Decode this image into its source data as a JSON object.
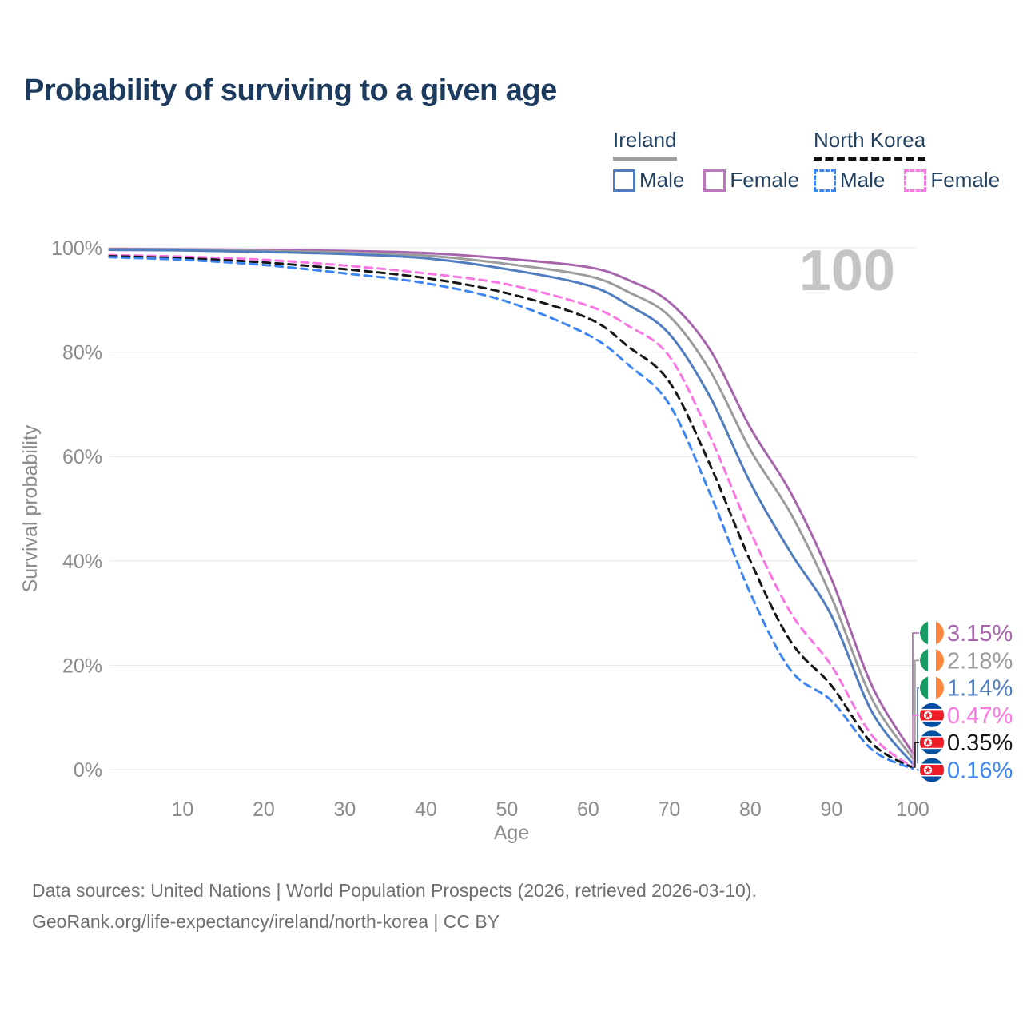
{
  "title": "Probability of surviving to a given age",
  "watermark": "100",
  "legend": {
    "groups": [
      {
        "label": "Ireland",
        "line_style": "solid",
        "underline_color": "#9e9e9e",
        "items": [
          {
            "label": "Male",
            "color": "#4f7dbf"
          },
          {
            "label": "Female",
            "color": "#bd77bd"
          }
        ]
      },
      {
        "label": "North Korea",
        "line_style": "dashed",
        "underline_color": "#111111",
        "items": [
          {
            "label": "Male",
            "color": "#3c85f2"
          },
          {
            "label": "Female",
            "color": "#fb76e4"
          }
        ]
      }
    ]
  },
  "chart_data": {
    "type": "line",
    "title": "Probability of surviving to a given age",
    "xlabel": "Age",
    "ylabel": "Survival probability",
    "xlim": [
      1,
      100.5
    ],
    "ylim": [
      0,
      100
    ],
    "grid": true,
    "x_ticks": [
      10,
      20,
      30,
      40,
      50,
      60,
      70,
      80,
      90,
      100
    ],
    "y_ticks": [
      0,
      20,
      40,
      60,
      80,
      100
    ],
    "y_tick_suffix": "%",
    "x": [
      1,
      10,
      20,
      30,
      40,
      50,
      60,
      65,
      70,
      75,
      80,
      85,
      90,
      95,
      100
    ],
    "series": [
      {
        "name": "Ireland Female",
        "country": "Ireland",
        "sex": "Female",
        "color": "#a765ab",
        "dashed": false,
        "flag": "ireland",
        "end_label": "3.15%",
        "values": [
          99.8,
          99.7,
          99.6,
          99.4,
          99.0,
          97.9,
          96.3,
          93.8,
          89.6,
          80.5,
          65.5,
          53.0,
          36.5,
          16.0,
          3.15
        ]
      },
      {
        "name": "Ireland Both sexes",
        "country": "Ireland",
        "sex": "Both",
        "color": "#9c9c9c",
        "dashed": false,
        "flag": "ireland",
        "end_label": "2.18%",
        "values": [
          99.7,
          99.6,
          99.4,
          99.1,
          98.5,
          96.9,
          94.6,
          91.5,
          86.9,
          76.5,
          61.3,
          49.0,
          33.0,
          13.5,
          2.18
        ]
      },
      {
        "name": "Ireland Male",
        "country": "Ireland",
        "sex": "Male",
        "color": "#4f7dbf",
        "dashed": false,
        "flag": "ireland",
        "end_label": "1.14%",
        "values": [
          99.6,
          99.5,
          99.2,
          98.8,
          98.0,
          95.9,
          92.8,
          89.0,
          83.5,
          71.5,
          55.0,
          41.5,
          29.5,
          11.0,
          1.14
        ]
      },
      {
        "name": "North Korea Female",
        "country": "North Korea",
        "sex": "Female",
        "color": "#fb76e4",
        "dashed": true,
        "flag": "north-korea",
        "end_label": "0.47%",
        "values": [
          98.6,
          98.3,
          97.7,
          96.6,
          95.1,
          93.0,
          88.9,
          85.0,
          79.2,
          64.0,
          45.6,
          30.0,
          19.9,
          6.5,
          0.47
        ]
      },
      {
        "name": "North Korea Both sexes",
        "country": "North Korea",
        "sex": "Both",
        "color": "#161616",
        "dashed": true,
        "flag": "north-korea",
        "end_label": "0.35%",
        "values": [
          98.4,
          98.0,
          97.2,
          95.9,
          94.2,
          91.3,
          86.5,
          81.0,
          74.3,
          58.5,
          40.0,
          24.5,
          16.1,
          5.0,
          0.35
        ]
      },
      {
        "name": "North Korea Male",
        "country": "North Korea",
        "sex": "Male",
        "color": "#3c85f2",
        "dashed": true,
        "flag": "north-korea",
        "end_label": "0.16%",
        "values": [
          98.2,
          97.7,
          96.7,
          95.1,
          93.2,
          89.7,
          83.3,
          77.5,
          70.0,
          53.0,
          33.8,
          19.0,
          13.2,
          3.8,
          0.16
        ]
      }
    ]
  },
  "flag_colors": {
    "ireland_green": "#169b62",
    "ireland_white": "#ffffff",
    "ireland_orange": "#ff883e",
    "nk_blue": "#024fa2",
    "nk_red": "#ed1c27",
    "nk_white": "#ffffff"
  },
  "style_colors": {
    "title": "#1d3a5f",
    "axis_text": "#8c8c8c",
    "grid": "#e7e7e7",
    "watermark": "#c4c4c4",
    "source_text": "#6f6f6f"
  },
  "source": {
    "line1": "Data sources: United Nations | World Population Prospects (2026, retrieved 2026-03-10).",
    "line2": "GeoRank.org/life-expectancy/ireland/north-korea | CC BY"
  }
}
